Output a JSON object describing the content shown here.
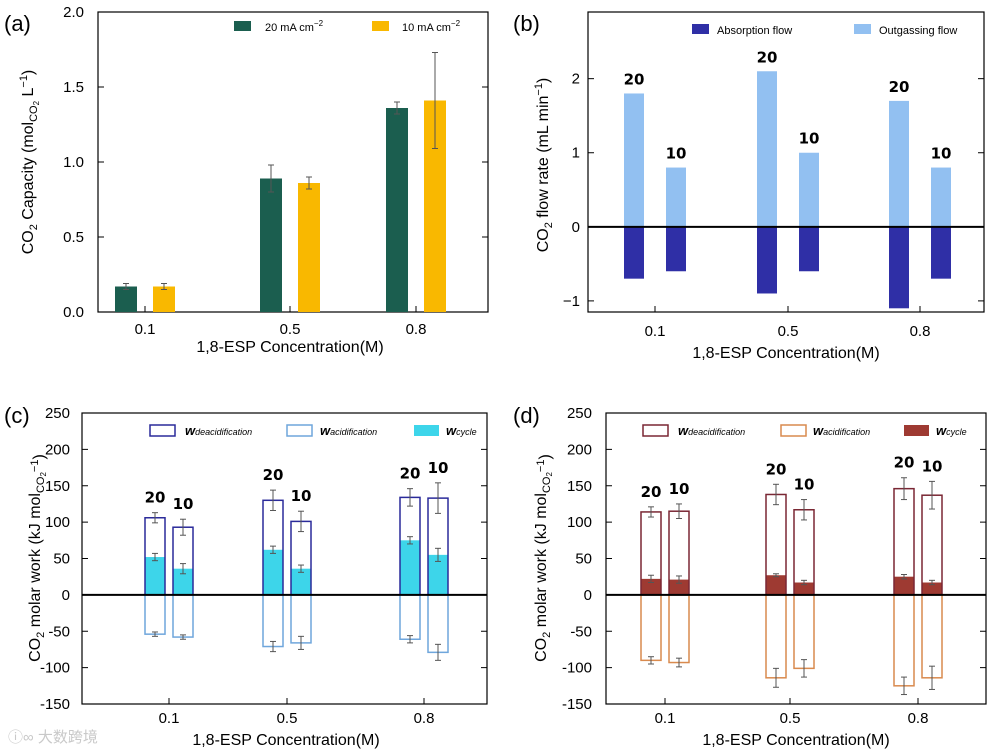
{
  "watermark": "大数跨境",
  "chart_data": [
    {
      "panel": "(a)",
      "type": "bar",
      "xlabel": "1,8-ESP Concentration(M)",
      "ylabel": "CO2 Capacity (molCO2 L−1)",
      "ylim": [
        0,
        2.0
      ],
      "yticks": [
        "0.0",
        "0.5",
        "1.0",
        "1.5",
        "2.0"
      ],
      "categories": [
        "0.1",
        "0.5",
        "0.8"
      ],
      "legend_position": "top-right",
      "series": [
        {
          "name": "20 mA cm−2",
          "color": "#1b5e4f",
          "values": [
            0.17,
            0.89,
            1.36
          ],
          "errors": [
            0.02,
            0.09,
            0.04
          ]
        },
        {
          "name": "10 mA cm−2",
          "color": "#f9b800",
          "values": [
            0.17,
            0.86,
            1.41
          ],
          "errors": [
            0.02,
            0.04,
            0.32
          ]
        }
      ]
    },
    {
      "panel": "(b)",
      "type": "bar",
      "xlabel": "1,8-ESP Concentration(M)",
      "ylabel": "CO2 flow rate (mL min−1)",
      "ylim": [
        -1.15,
        2.9
      ],
      "yticks": [
        "−1",
        "0",
        "1",
        "2"
      ],
      "categories": [
        "0.1",
        "0.5",
        "0.8"
      ],
      "legend_position": "top",
      "group_labels": [
        "20",
        "10"
      ],
      "series": [
        {
          "name": "Absorption flow",
          "color": "#2f2fa6",
          "values": [
            [
              -0.7,
              -0.6
            ],
            [
              -0.9,
              -0.6
            ],
            [
              -1.1,
              -0.7
            ]
          ]
        },
        {
          "name": "Outgassing flow",
          "color": "#92c0f1",
          "values": [
            [
              1.8,
              0.8
            ],
            [
              2.1,
              1.0
            ],
            [
              1.7,
              0.8
            ]
          ]
        }
      ]
    },
    {
      "panel": "(c)",
      "type": "bar",
      "xlabel": "1,8-ESP Concentration(M)",
      "ylabel": "CO2 molar work (kJ molCO2−1)",
      "ylim": [
        -150,
        250
      ],
      "yticks": [
        "-150",
        "-100",
        "-50",
        "0",
        "50",
        "100",
        "150",
        "200",
        "250"
      ],
      "categories": [
        "0.1",
        "0.5",
        "0.8"
      ],
      "legend_position": "top",
      "group_labels": [
        "20",
        "10"
      ],
      "series": [
        {
          "name": "wdeacidification",
          "color": "#2a2a9a",
          "style": "outline",
          "values": [
            [
              106,
              93
            ],
            [
              130,
              101
            ],
            [
              134,
              133
            ]
          ],
          "errors": [
            [
              7,
              11
            ],
            [
              14,
              14
            ],
            [
              12,
              21
            ]
          ]
        },
        {
          "name": "wacidification",
          "color": "#6fa6dc",
          "style": "outline",
          "values": [
            [
              -54,
              -58
            ],
            [
              -71,
              -66
            ],
            [
              -61,
              -79
            ]
          ],
          "errors": [
            [
              3,
              3
            ],
            [
              7,
              9
            ],
            [
              5,
              11
            ]
          ]
        },
        {
          "name": "wcycle",
          "color": "#3dd5ea",
          "style": "filled",
          "values": [
            [
              52,
              36
            ],
            [
              62,
              36
            ],
            [
              75,
              55
            ]
          ],
          "errors": [
            [
              5,
              7
            ],
            [
              5,
              5
            ],
            [
              5,
              9
            ]
          ]
        }
      ]
    },
    {
      "panel": "(d)",
      "type": "bar",
      "xlabel": "1,8-ESP Concentration(M)",
      "ylabel": "CO2 molar work (kJ molCO2−1)",
      "ylim": [
        -150,
        250
      ],
      "yticks": [
        "-150",
        "-100",
        "-50",
        "0",
        "50",
        "100",
        "150",
        "200",
        "250"
      ],
      "categories": [
        "0.1",
        "0.5",
        "0.8"
      ],
      "legend_position": "top",
      "group_labels": [
        "20",
        "10"
      ],
      "series": [
        {
          "name": "wdeacidification",
          "color": "#7a2734",
          "style": "outline",
          "values": [
            [
              114,
              115
            ],
            [
              138,
              117
            ],
            [
              146,
              137
            ]
          ],
          "errors": [
            [
              7,
              10
            ],
            [
              14,
              14
            ],
            [
              15,
              19
            ]
          ]
        },
        {
          "name": "wacidification",
          "color": "#d98a4e",
          "style": "outline",
          "values": [
            [
              -90,
              -93
            ],
            [
              -114,
              -101
            ],
            [
              -125,
              -114
            ]
          ],
          "errors": [
            [
              5,
              6
            ],
            [
              13,
              12
            ],
            [
              12,
              16
            ]
          ]
        },
        {
          "name": "wcycle",
          "color": "#9e3a32",
          "style": "filled",
          "values": [
            [
              22,
              21
            ],
            [
              27,
              17
            ],
            [
              25,
              17
            ]
          ],
          "errors": [
            [
              5,
              5
            ],
            [
              2,
              3
            ],
            [
              3,
              3
            ]
          ]
        }
      ]
    }
  ]
}
